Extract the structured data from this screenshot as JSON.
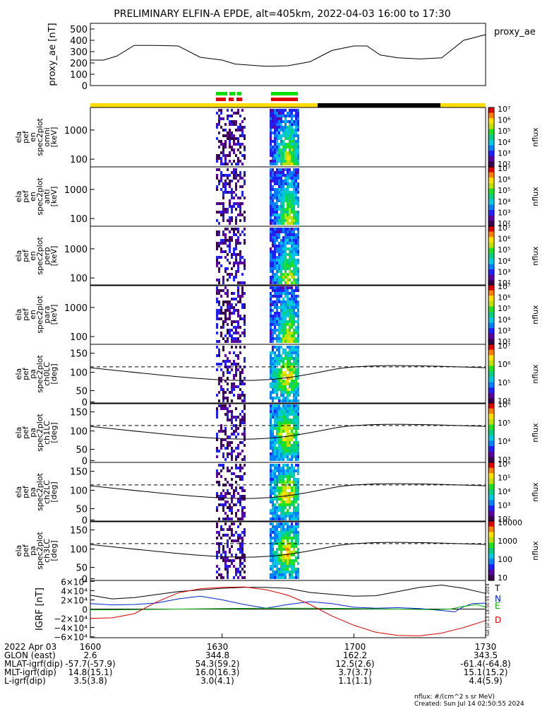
{
  "header": {
    "title": "PRELIMINARY ELFIN-A EPDE, alt=405km, 2022-04-03 16:00 to 17:30"
  },
  "chart_data": [
    {
      "type": "line",
      "panel": "proxy_ae",
      "ylabel": "proxy_ae [nT]",
      "legend": "proxy_ae",
      "yticks": [
        "500",
        "400",
        "300",
        "200",
        "100",
        "0"
      ],
      "ylim": [
        0,
        550
      ],
      "xlim": [
        0,
        90
      ],
      "x": [
        0,
        3,
        6,
        10,
        15,
        20,
        25,
        30,
        33,
        40,
        45,
        50,
        52,
        55,
        60,
        63,
        66,
        70,
        75,
        80,
        85,
        90
      ],
      "values": [
        225,
        225,
        260,
        355,
        355,
        350,
        250,
        225,
        190,
        170,
        175,
        210,
        250,
        310,
        350,
        350,
        270,
        245,
        235,
        245,
        400,
        450
      ]
    },
    {
      "type": "heatmap",
      "panel": "elfa_pef_en_spec2plot_omni",
      "ylabel_lines": [
        "ela",
        "pef",
        "en",
        "spec2plot",
        "omni",
        "[keV]"
      ],
      "yticks": [
        "1000",
        "100"
      ],
      "colorbar": {
        "label": "nflux",
        "ticks": [
          "10⁷",
          "10⁶",
          "10⁵",
          "10⁴",
          "10³",
          "10²"
        ]
      }
    },
    {
      "type": "heatmap",
      "panel": "elfa_pef_en_spec2plot_anti",
      "ylabel_lines": [
        "ela",
        "pef",
        "en",
        "spec2plot",
        "anti",
        "[keV]"
      ],
      "yticks": [
        "1000",
        "100"
      ],
      "colorbar": {
        "label": "nflux",
        "ticks": [
          "10⁷",
          "10⁶",
          "10⁵",
          "10⁴",
          "10³",
          "10²"
        ]
      }
    },
    {
      "type": "heatmap",
      "panel": "elfa_pef_en_spec2plot_perp",
      "ylabel_lines": [
        "ela",
        "pef",
        "en",
        "spec2plot",
        "perp",
        "[keV]"
      ],
      "yticks": [
        "1000",
        "100"
      ],
      "colorbar": {
        "label": "nflux",
        "ticks": [
          "10⁷",
          "10⁶",
          "10⁵",
          "10⁴",
          "10³",
          "10²"
        ]
      }
    },
    {
      "type": "heatmap",
      "panel": "elfa_pef_en_spec2plot_para",
      "ylabel_lines": [
        "ela",
        "pef",
        "en",
        "spec2plot",
        "para",
        "[keV]"
      ],
      "yticks": [
        "1000",
        "100"
      ],
      "colorbar": {
        "label": "nflux",
        "ticks": [
          "10⁷",
          "10⁶",
          "10⁵",
          "10⁴",
          "10³",
          "10²"
        ]
      }
    },
    {
      "type": "heatmap",
      "panel": "elfa_pef_pa_spec2plot_ch0LC",
      "ylabel_lines": [
        "ela",
        "pef",
        "pa",
        "spec2plot",
        "ch0LC",
        "[deg]"
      ],
      "yticks": [
        "150",
        "100",
        "50",
        "0"
      ],
      "colorbar": {
        "label": "nflux",
        "ticks": [
          "10⁷",
          "10⁶",
          "10⁵",
          "10⁴"
        ]
      }
    },
    {
      "type": "heatmap",
      "panel": "elfa_pef_pa_spec2plot_ch1LC",
      "ylabel_lines": [
        "ela",
        "pef",
        "pa",
        "spec2plot",
        "ch1LC",
        "[deg]"
      ],
      "yticks": [
        "150",
        "100",
        "50",
        "0"
      ],
      "colorbar": {
        "label": "nflux",
        "ticks": [
          "10⁶",
          "10⁵",
          "10⁴",
          "10³"
        ]
      }
    },
    {
      "type": "heatmap",
      "panel": "elfa_pef_pa_spec2plot_ch2LC",
      "ylabel_lines": [
        "ela",
        "pef",
        "pa",
        "spec2plot",
        "ch2LC",
        "[deg]"
      ],
      "yticks": [
        "150",
        "100",
        "50",
        "0"
      ],
      "colorbar": {
        "label": "nflux",
        "ticks": [
          "10⁶",
          "10⁵",
          "10⁴",
          "10³",
          "10²"
        ]
      }
    },
    {
      "type": "heatmap",
      "panel": "elfa_pef_pa_spec2plot_ch3LC",
      "ylabel_lines": [
        "ela",
        "pef",
        "pa",
        "spec2plot",
        "ch3LC",
        "[deg]"
      ],
      "yticks": [
        "150",
        "100",
        "50",
        "0"
      ],
      "colorbar": {
        "label": "nflux",
        "ticks": [
          "10000",
          "1000",
          "100",
          "10"
        ]
      }
    },
    {
      "type": "line",
      "panel": "IGRF",
      "ylabel": "IGRF [nT]",
      "yticks": [
        "6×10⁴",
        "4×10⁴",
        "2×10⁴",
        "0",
        "−2×10⁴",
        "−4×10⁴",
        "−6×10⁴"
      ],
      "ylim": [
        -62000,
        62000
      ],
      "xlim": [
        0,
        90
      ],
      "legend": [
        "T",
        "N",
        "E",
        "D"
      ],
      "series": [
        {
          "name": "T",
          "color": "#000000",
          "x": [
            0,
            5,
            10,
            20,
            30,
            35,
            40,
            45,
            50,
            55,
            60,
            65,
            70,
            75,
            80,
            85,
            90
          ],
          "values": [
            30000,
            22000,
            25000,
            38000,
            45000,
            47000,
            47000,
            45000,
            36000,
            32000,
            28000,
            29000,
            38000,
            47000,
            52000,
            45000,
            34000
          ]
        },
        {
          "name": "N",
          "color": "#0022cc",
          "x": [
            0,
            5,
            10,
            15,
            20,
            25,
            30,
            35,
            40,
            45,
            50,
            55,
            60,
            65,
            70,
            75,
            80,
            83,
            85,
            87,
            90
          ],
          "values": [
            12000,
            9000,
            10000,
            13000,
            22000,
            28000,
            20000,
            10000,
            2000,
            10000,
            16000,
            12000,
            4000,
            2000,
            3000,
            1000,
            -3000,
            -6000,
            5000,
            12000,
            13000
          ]
        },
        {
          "name": "E",
          "color": "#00b000",
          "x": [
            0,
            10,
            20,
            30,
            40,
            50,
            60,
            70,
            78,
            82,
            85,
            88,
            90
          ],
          "values": [
            -2000,
            -1000,
            0,
            1000,
            2000,
            2000,
            1000,
            0,
            -1000,
            0,
            6000,
            10000,
            4000
          ]
        },
        {
          "name": "D",
          "color": "#dd0000",
          "x": [
            0,
            5,
            10,
            15,
            20,
            25,
            30,
            35,
            40,
            45,
            50,
            55,
            60,
            65,
            70,
            75,
            80,
            85,
            90
          ],
          "values": [
            -20000,
            -19000,
            -10000,
            15000,
            35000,
            44000,
            47000,
            48000,
            42000,
            30000,
            10000,
            -15000,
            -35000,
            -50000,
            -57000,
            -58000,
            -52000,
            -40000,
            -25000
          ]
        }
      ]
    }
  ],
  "ephemeris": {
    "rows": [
      {
        "label": "2022 Apr 03",
        "cols": [
          "1600",
          "1630",
          "1700",
          "1730"
        ]
      },
      {
        "label": "GLON (east)",
        "cols": [
          "2.6",
          "344.8",
          "162.2",
          "343.5"
        ]
      },
      {
        "label": "MLAT-igrf(dip)",
        "cols": [
          "-57.7(-57.9)",
          "54.3(59.2)",
          "12.5(2.6)",
          "-61.4(-64.8)"
        ]
      },
      {
        "label": "MLT-igrf(dip)",
        "cols": [
          "14.8(15.1)",
          "16.0(16.3)",
          "3.7(3.7)",
          "15.1(15.2)"
        ]
      },
      {
        "label": "L-igrf(dip)",
        "cols": [
          "3.5(3.8)",
          "3.0(4.1)",
          "1.1(1.1)",
          "4.4(5.9)"
        ]
      }
    ]
  },
  "footer": {
    "units": "nflux: #/(cm^2 s sr MeV)",
    "created": "Created: Sun Jul 14 02:50:55 2024",
    "side_stamp": "Sat Jul 13 18:50:55 2024"
  },
  "colors": {
    "science_bar": "#ffdd00",
    "gap_bar": "#000000",
    "zone_green": "#00e000",
    "zone_red": "#e00000"
  }
}
